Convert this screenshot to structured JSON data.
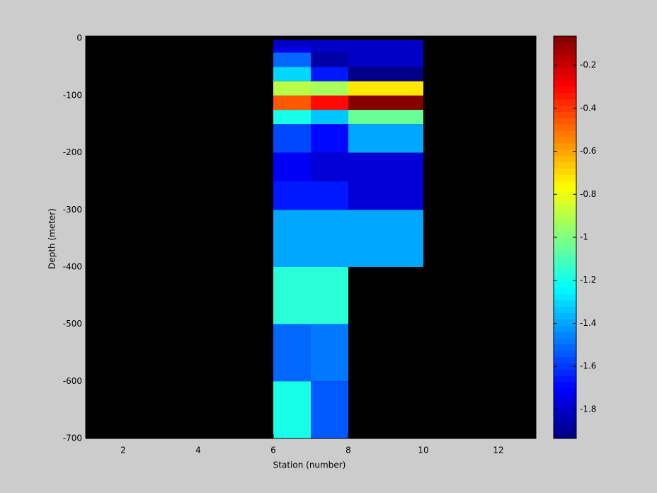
{
  "chart_data": {
    "type": "heatmap",
    "colormap": "jet",
    "xlabel": "Station (number)",
    "ylabel": "Depth (meter)",
    "x_edges": [
      6,
      7,
      8,
      10
    ],
    "y_edges": [
      -2.5,
      -15,
      -25,
      -50,
      -75,
      -100,
      -125,
      -150,
      -200,
      -250,
      -300,
      -400,
      -500,
      -600,
      -700
    ],
    "values": [
      [
        -1.8,
        -1.8,
        -1.8
      ],
      [
        -1.75,
        -1.8,
        -1.8
      ],
      [
        -1.5,
        -1.85,
        -1.8
      ],
      [
        -1.3,
        -1.67,
        -1.93
      ],
      [
        -0.9,
        -0.92,
        -0.72
      ],
      [
        -0.45,
        -0.3,
        -0.08
      ],
      [
        -1.2,
        -1.33,
        -1.03
      ],
      [
        -1.58,
        -1.7,
        -1.4
      ],
      [
        -1.73,
        -1.76,
        -1.78
      ],
      [
        -1.67,
        -1.67,
        -1.78
      ],
      [
        -1.4,
        -1.4,
        -1.4
      ],
      [
        -1.15,
        -1.15,
        null
      ],
      [
        -1.52,
        -1.48,
        null
      ],
      [
        -1.18,
        -1.54,
        null
      ]
    ],
    "xlim": [
      1,
      13
    ],
    "xticks": [
      2,
      4,
      6,
      8,
      10,
      12
    ],
    "ylim": [
      -700,
      4
    ],
    "yticks": [
      0,
      -100,
      -200,
      -300,
      -400,
      -500,
      -600,
      -700
    ],
    "clim": [
      -1.935,
      -0.065
    ],
    "cticks": [
      -0.2,
      -0.4,
      -0.6,
      -0.8,
      -1,
      -1.2,
      -1.4,
      -1.6,
      -1.8
    ],
    "background": "#000000"
  }
}
